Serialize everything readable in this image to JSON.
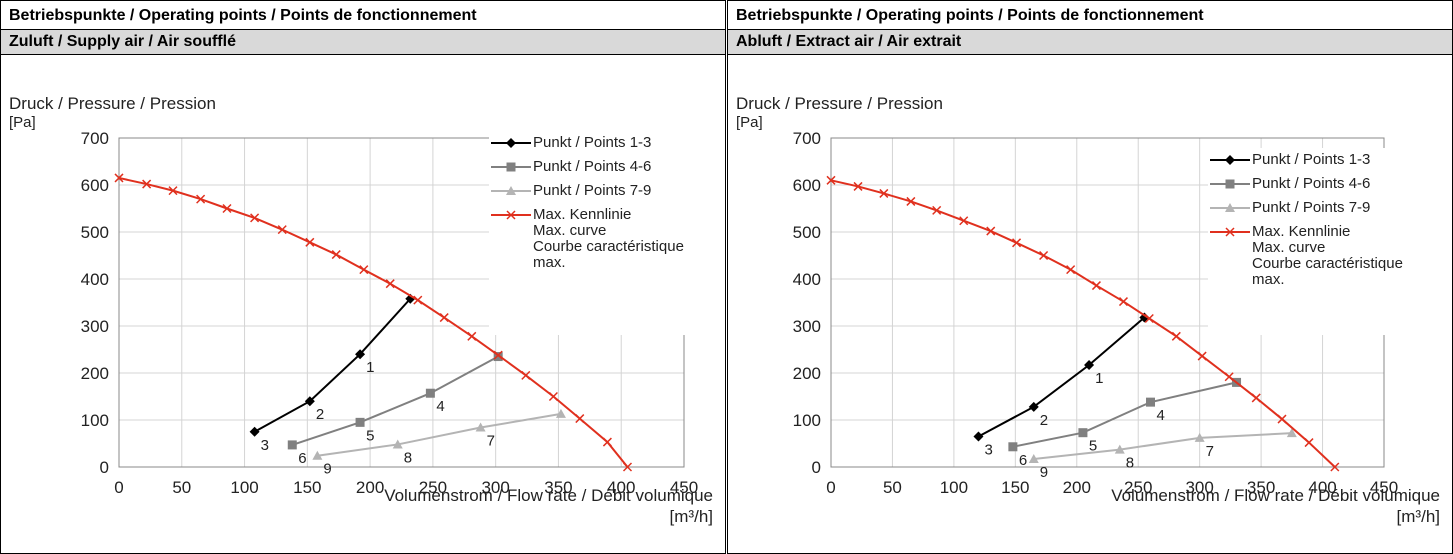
{
  "chart_data": [
    {
      "type": "line",
      "title": "Betriebspunkte / Operating points / Points de fonctionnement",
      "subtitle": "Zuluft / Supply air / Air soufflé",
      "y_label": "Druck / Pressure / Pression",
      "y_unit": "[Pa]",
      "x_label": "Volumenstrom / Flow rate / Débit volumique",
      "x_unit": "[m³/h]",
      "xlim": [
        0,
        450
      ],
      "xticks": [
        0,
        50,
        100,
        150,
        200,
        250,
        300,
        350,
        400,
        450
      ],
      "ylim": [
        0,
        700
      ],
      "yticks": [
        0,
        100,
        200,
        300,
        400,
        500,
        600,
        700
      ],
      "grid": true,
      "legend": "upper right",
      "series": [
        {
          "name": "Punkt / Points 1-3",
          "color": "#000000",
          "marker": "diamond",
          "x": [
            108,
            152,
            192,
            232
          ],
          "values": [
            75,
            140,
            240,
            358
          ],
          "point_labels": [
            "3",
            "2",
            "1",
            null
          ]
        },
        {
          "name": "Punkt / Points 4-6",
          "color": "#808080",
          "marker": "square",
          "x": [
            138,
            192,
            248,
            302
          ],
          "values": [
            47,
            95,
            157,
            235
          ],
          "point_labels": [
            "6",
            "5",
            "4",
            null
          ]
        },
        {
          "name": "Punkt / Points 7-9",
          "color": "#b4b4b4",
          "marker": "triangle",
          "x": [
            158,
            222,
            288,
            352
          ],
          "values": [
            24,
            48,
            84,
            113
          ],
          "point_labels": [
            "9",
            "8",
            "7",
            null
          ]
        },
        {
          "name": "Max. Kennlinie\nMax. curve\nCourbe caractéristique\nmax.",
          "color": "#e0301e",
          "marker": "x",
          "x": [
            0,
            22,
            43,
            65,
            86,
            108,
            130,
            152,
            173,
            195,
            216,
            238,
            259,
            281,
            302,
            324,
            346,
            367,
            389,
            405
          ],
          "values": [
            615,
            602,
            588,
            570,
            550,
            530,
            505,
            478,
            452,
            420,
            390,
            355,
            318,
            278,
            238,
            195,
            150,
            103,
            53,
            0
          ]
        }
      ]
    },
    {
      "type": "line",
      "title": "Betriebspunkte / Operating points / Points de fonctionnement",
      "subtitle": "Abluft / Extract air / Air extrait",
      "y_label": "Druck / Pressure / Pression",
      "y_unit": "[Pa]",
      "x_label": "Volumenstrom / Flow rate / Débit volumique",
      "x_unit": "[m³/h]",
      "xlim": [
        0,
        450
      ],
      "xticks": [
        0,
        50,
        100,
        150,
        200,
        250,
        300,
        350,
        400,
        450
      ],
      "ylim": [
        0,
        700
      ],
      "yticks": [
        0,
        100,
        200,
        300,
        400,
        500,
        600,
        700
      ],
      "grid": true,
      "legend": "upper right",
      "series": [
        {
          "name": "Punkt / Points 1-3",
          "color": "#000000",
          "marker": "diamond",
          "x": [
            120,
            165,
            210,
            255
          ],
          "values": [
            65,
            128,
            217,
            318
          ],
          "point_labels": [
            "3",
            "2",
            "1",
            null
          ]
        },
        {
          "name": "Punkt / Points 4-6",
          "color": "#808080",
          "marker": "square",
          "x": [
            148,
            205,
            260,
            330
          ],
          "values": [
            43,
            73,
            138,
            180
          ],
          "point_labels": [
            "6",
            "5",
            "4",
            null
          ]
        },
        {
          "name": "Punkt / Points 7-9",
          "color": "#b4b4b4",
          "marker": "triangle",
          "x": [
            165,
            235,
            300,
            375
          ],
          "values": [
            17,
            37,
            62,
            72
          ],
          "point_labels": [
            "9",
            "8",
            "7",
            null
          ]
        },
        {
          "name": "Max. Kennlinie\nMax. curve\nCourbe caractéristique\nmax.",
          "color": "#e0301e",
          "marker": "x",
          "x": [
            0,
            22,
            43,
            65,
            86,
            108,
            130,
            151,
            173,
            195,
            216,
            238,
            259,
            281,
            302,
            324,
            346,
            367,
            389,
            410
          ],
          "values": [
            610,
            597,
            582,
            565,
            546,
            524,
            502,
            477,
            450,
            420,
            386,
            352,
            316,
            278,
            236,
            192,
            147,
            102,
            52,
            0
          ]
        }
      ]
    }
  ]
}
